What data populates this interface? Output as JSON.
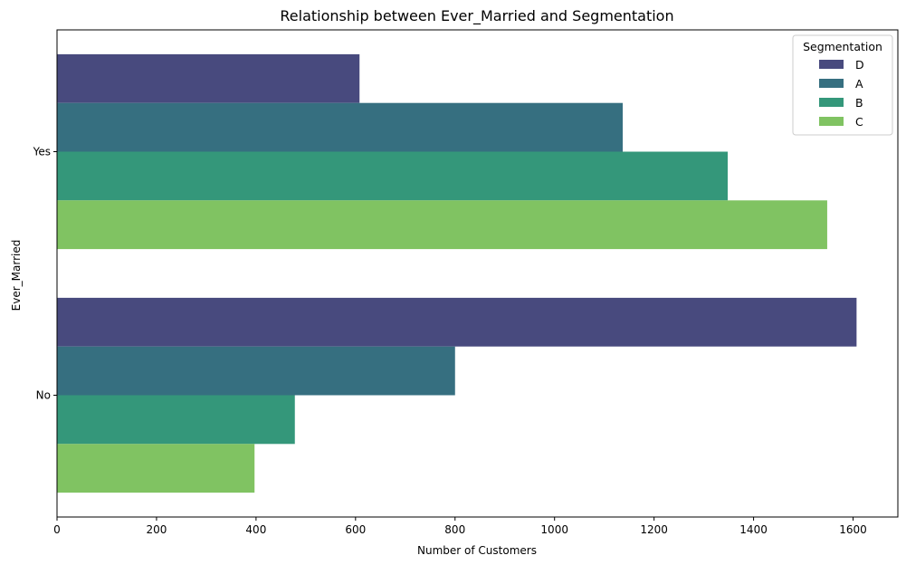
{
  "chart_data": {
    "type": "bar",
    "orientation": "horizontal",
    "title": "Relationship between Ever_Married and Segmentation",
    "xlabel": "Number of Customers",
    "ylabel": "Ever_Married",
    "categories": [
      "Yes",
      "No"
    ],
    "xlim": [
      0,
      1690
    ],
    "xticks": [
      0,
      200,
      400,
      600,
      800,
      1000,
      1200,
      1400,
      1600
    ],
    "legend": {
      "title": "Segmentation",
      "position": "top-right"
    },
    "series": [
      {
        "name": "D",
        "color": "#484a7e",
        "values": [
          608,
          1607
        ]
      },
      {
        "name": "A",
        "color": "#366f80",
        "values": [
          1137,
          800
        ]
      },
      {
        "name": "B",
        "color": "#34977a",
        "values": [
          1348,
          478
        ]
      },
      {
        "name": "C",
        "color": "#80c362",
        "values": [
          1548,
          397
        ]
      }
    ]
  }
}
